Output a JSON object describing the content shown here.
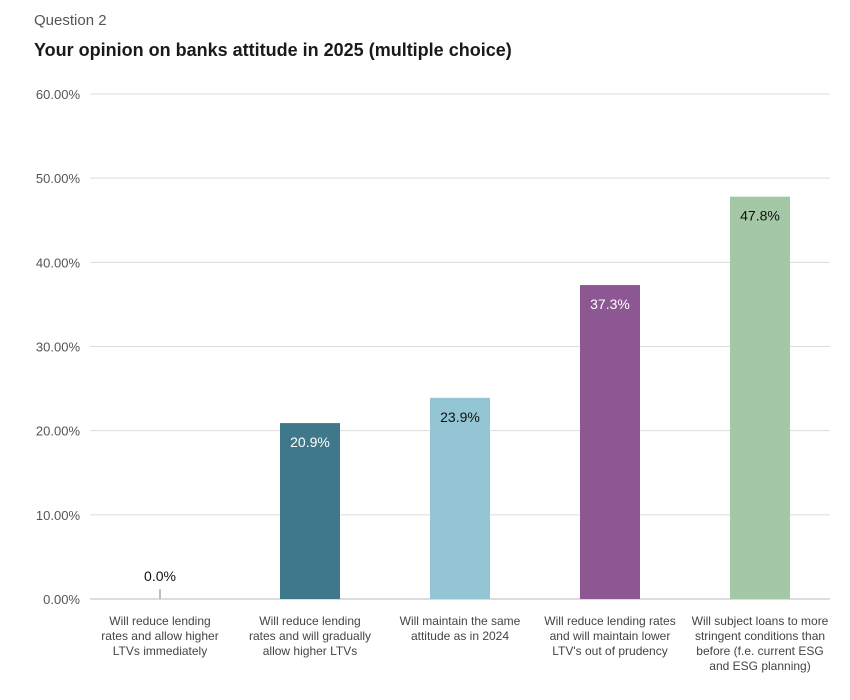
{
  "header": {
    "kicker": "Question 2",
    "title": "Your opinion on banks attitude in 2025 (multiple choice)"
  },
  "chart_data": {
    "type": "bar",
    "title": "Your opinion on banks attitude in 2025 (multiple choice)",
    "xlabel": "",
    "ylabel": "",
    "ylim": [
      0,
      60
    ],
    "yticks": [
      "0.00%",
      "10.00%",
      "20.00%",
      "30.00%",
      "40.00%",
      "50.00%",
      "60.00%"
    ],
    "grid": true,
    "legend": "none",
    "categories": [
      "Will reduce lending rates and allow higher LTVs immediately",
      "Will reduce lending rates and will gradually allow higher LTVs",
      "Will maintain the same attitude as in 2024",
      "Will reduce lending rates and will maintain lower LTV's out of prudency",
      "Will subject loans to more stringent conditions than before (f.e. current ESG and ESG planning)"
    ],
    "category_lines": [
      [
        "Will reduce lending",
        "rates and allow higher",
        "LTVs immediately"
      ],
      [
        "Will reduce lending",
        "rates and will gradually",
        "allow higher LTVs"
      ],
      [
        "Will maintain the same",
        "attitude as in 2024"
      ],
      [
        "Will reduce lending rates",
        "and will maintain lower",
        "LTV's out of prudency"
      ],
      [
        "Will subject loans to more",
        "stringent conditions than",
        "before (f.e. current ESG",
        "and ESG planning)"
      ]
    ],
    "values": [
      0.0,
      20.9,
      23.9,
      37.3,
      47.8
    ],
    "data_labels": [
      "0.0%",
      "20.9%",
      "23.9%",
      "37.3%",
      "47.8%"
    ],
    "colors": [
      "#9bb0b8",
      "#3f788b",
      "#93c5d5",
      "#8c5792",
      "#a4c8a5"
    ],
    "label_colors": [
      "#111111",
      "#ffffff",
      "#111111",
      "#ffffff",
      "#111111"
    ]
  }
}
